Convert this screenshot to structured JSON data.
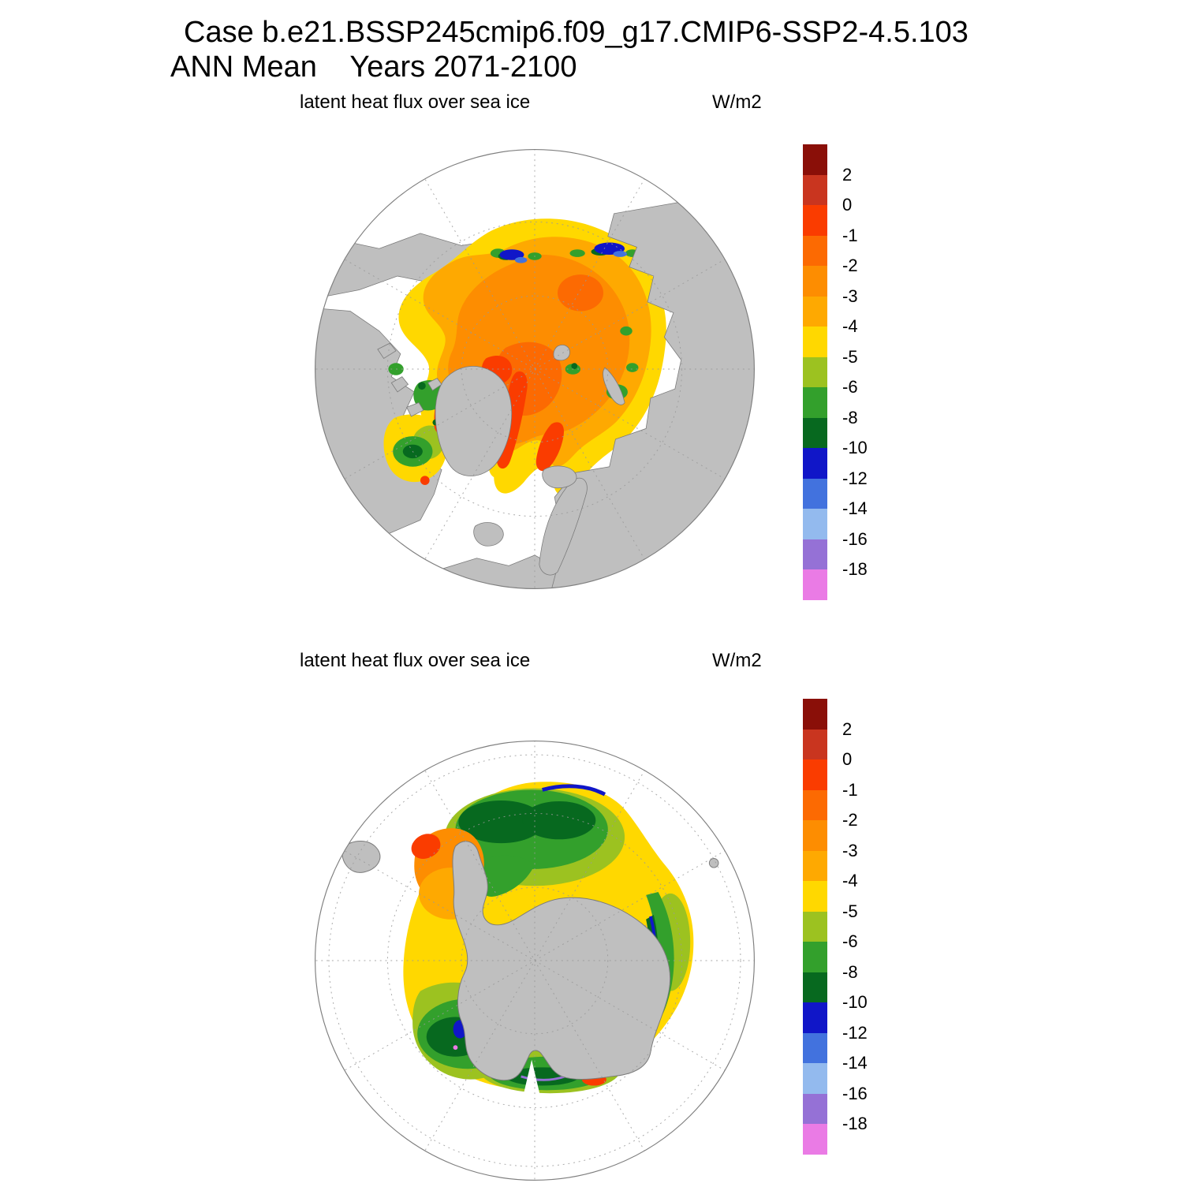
{
  "header": {
    "line1": "Case b.e21.BSSP245cmip6.f09_g17.CMIP6-SSP2-4.5.103",
    "line2": "ANN Mean    Years 2071-2100"
  },
  "panels": {
    "north": {
      "label": "latent heat flux over sea ice",
      "units": "W/m2"
    },
    "south": {
      "label": "latent heat flux over sea ice",
      "units": "W/m2"
    }
  },
  "map_colors": {
    "land": "#BFBFBF",
    "ocean": "#FFFFFF",
    "graticule": "#999999",
    "outline": "#7F7F7F"
  },
  "chart_data": {
    "type": "heatmap",
    "case": "b.e21.BSSP245cmip6.f09_g17.CMIP6-SSP2-4.5.103",
    "statistic": "ANN Mean",
    "years": "2071-2100",
    "variable": "latent heat flux over sea ice",
    "units": "W/m2",
    "panels": [
      "Arctic north polar stereographic map",
      "Antarctic south polar stereographic map"
    ],
    "levels": [
      2,
      0,
      -1,
      -2,
      -3,
      -4,
      -5,
      -6,
      -8,
      -10,
      -12,
      -14,
      -16,
      -18
    ],
    "legend_position": "right vertical labelbar, one per panel",
    "grid": "dashed graticule circles and meridians every 30 degrees",
    "colorbar": {
      "tick_labels": [
        "2",
        "0",
        "-1",
        "-2",
        "-3",
        "-4",
        "-5",
        "-6",
        "-8",
        "-10",
        "-12",
        "-14",
        "-16",
        "-18"
      ],
      "colors": [
        "#8A0F08",
        "#C9351F",
        "#FA3C00",
        "#FC6A02",
        "#FD8D01",
        "#FEA901",
        "#FFD800",
        "#9CC220",
        "#33A02C",
        "#07691F",
        "#1016C8",
        "#4272DE",
        "#93BAEE",
        "#9571D6",
        "#EA7BE5"
      ]
    }
  }
}
